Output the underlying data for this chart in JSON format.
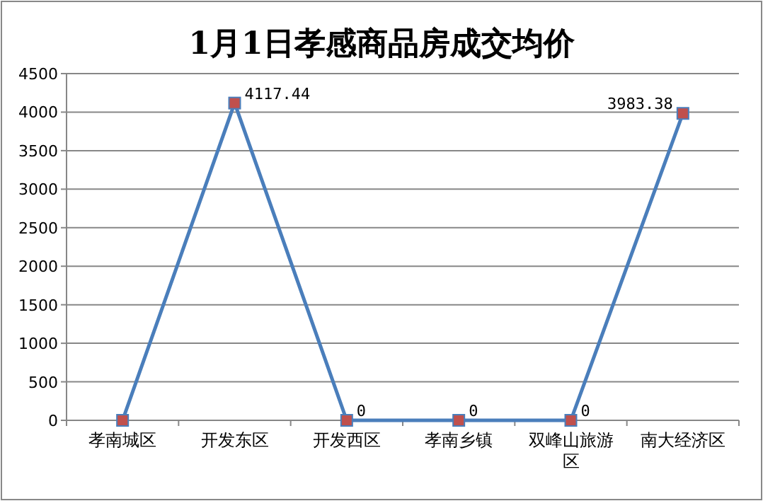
{
  "chart_data": {
    "type": "line",
    "title": "1月1日孝感商品房成交均价",
    "categories": [
      "孝南城区",
      "开发东区",
      "开发西区",
      "孝南乡镇",
      "双峰山旅游区",
      "南大经济区"
    ],
    "values": [
      0,
      4117.44,
      0,
      0,
      0,
      3983.38
    ],
    "value_labels": [
      null,
      "4117.44",
      "0",
      "0",
      "0",
      "3983.38"
    ],
    "color": "#4a7ebb",
    "colors": [
      "#c0504d",
      "#c0504d",
      "#c0504d",
      "#c0504d",
      "#c0504d",
      "#c0504d"
    ],
    "marker": "square",
    "line_style": "solid",
    "ylim": [
      0,
      4500
    ],
    "yticks": [
      0,
      500,
      1000,
      1500,
      2000,
      2500,
      3000,
      3500,
      4000,
      4500
    ],
    "grid": "y"
  }
}
